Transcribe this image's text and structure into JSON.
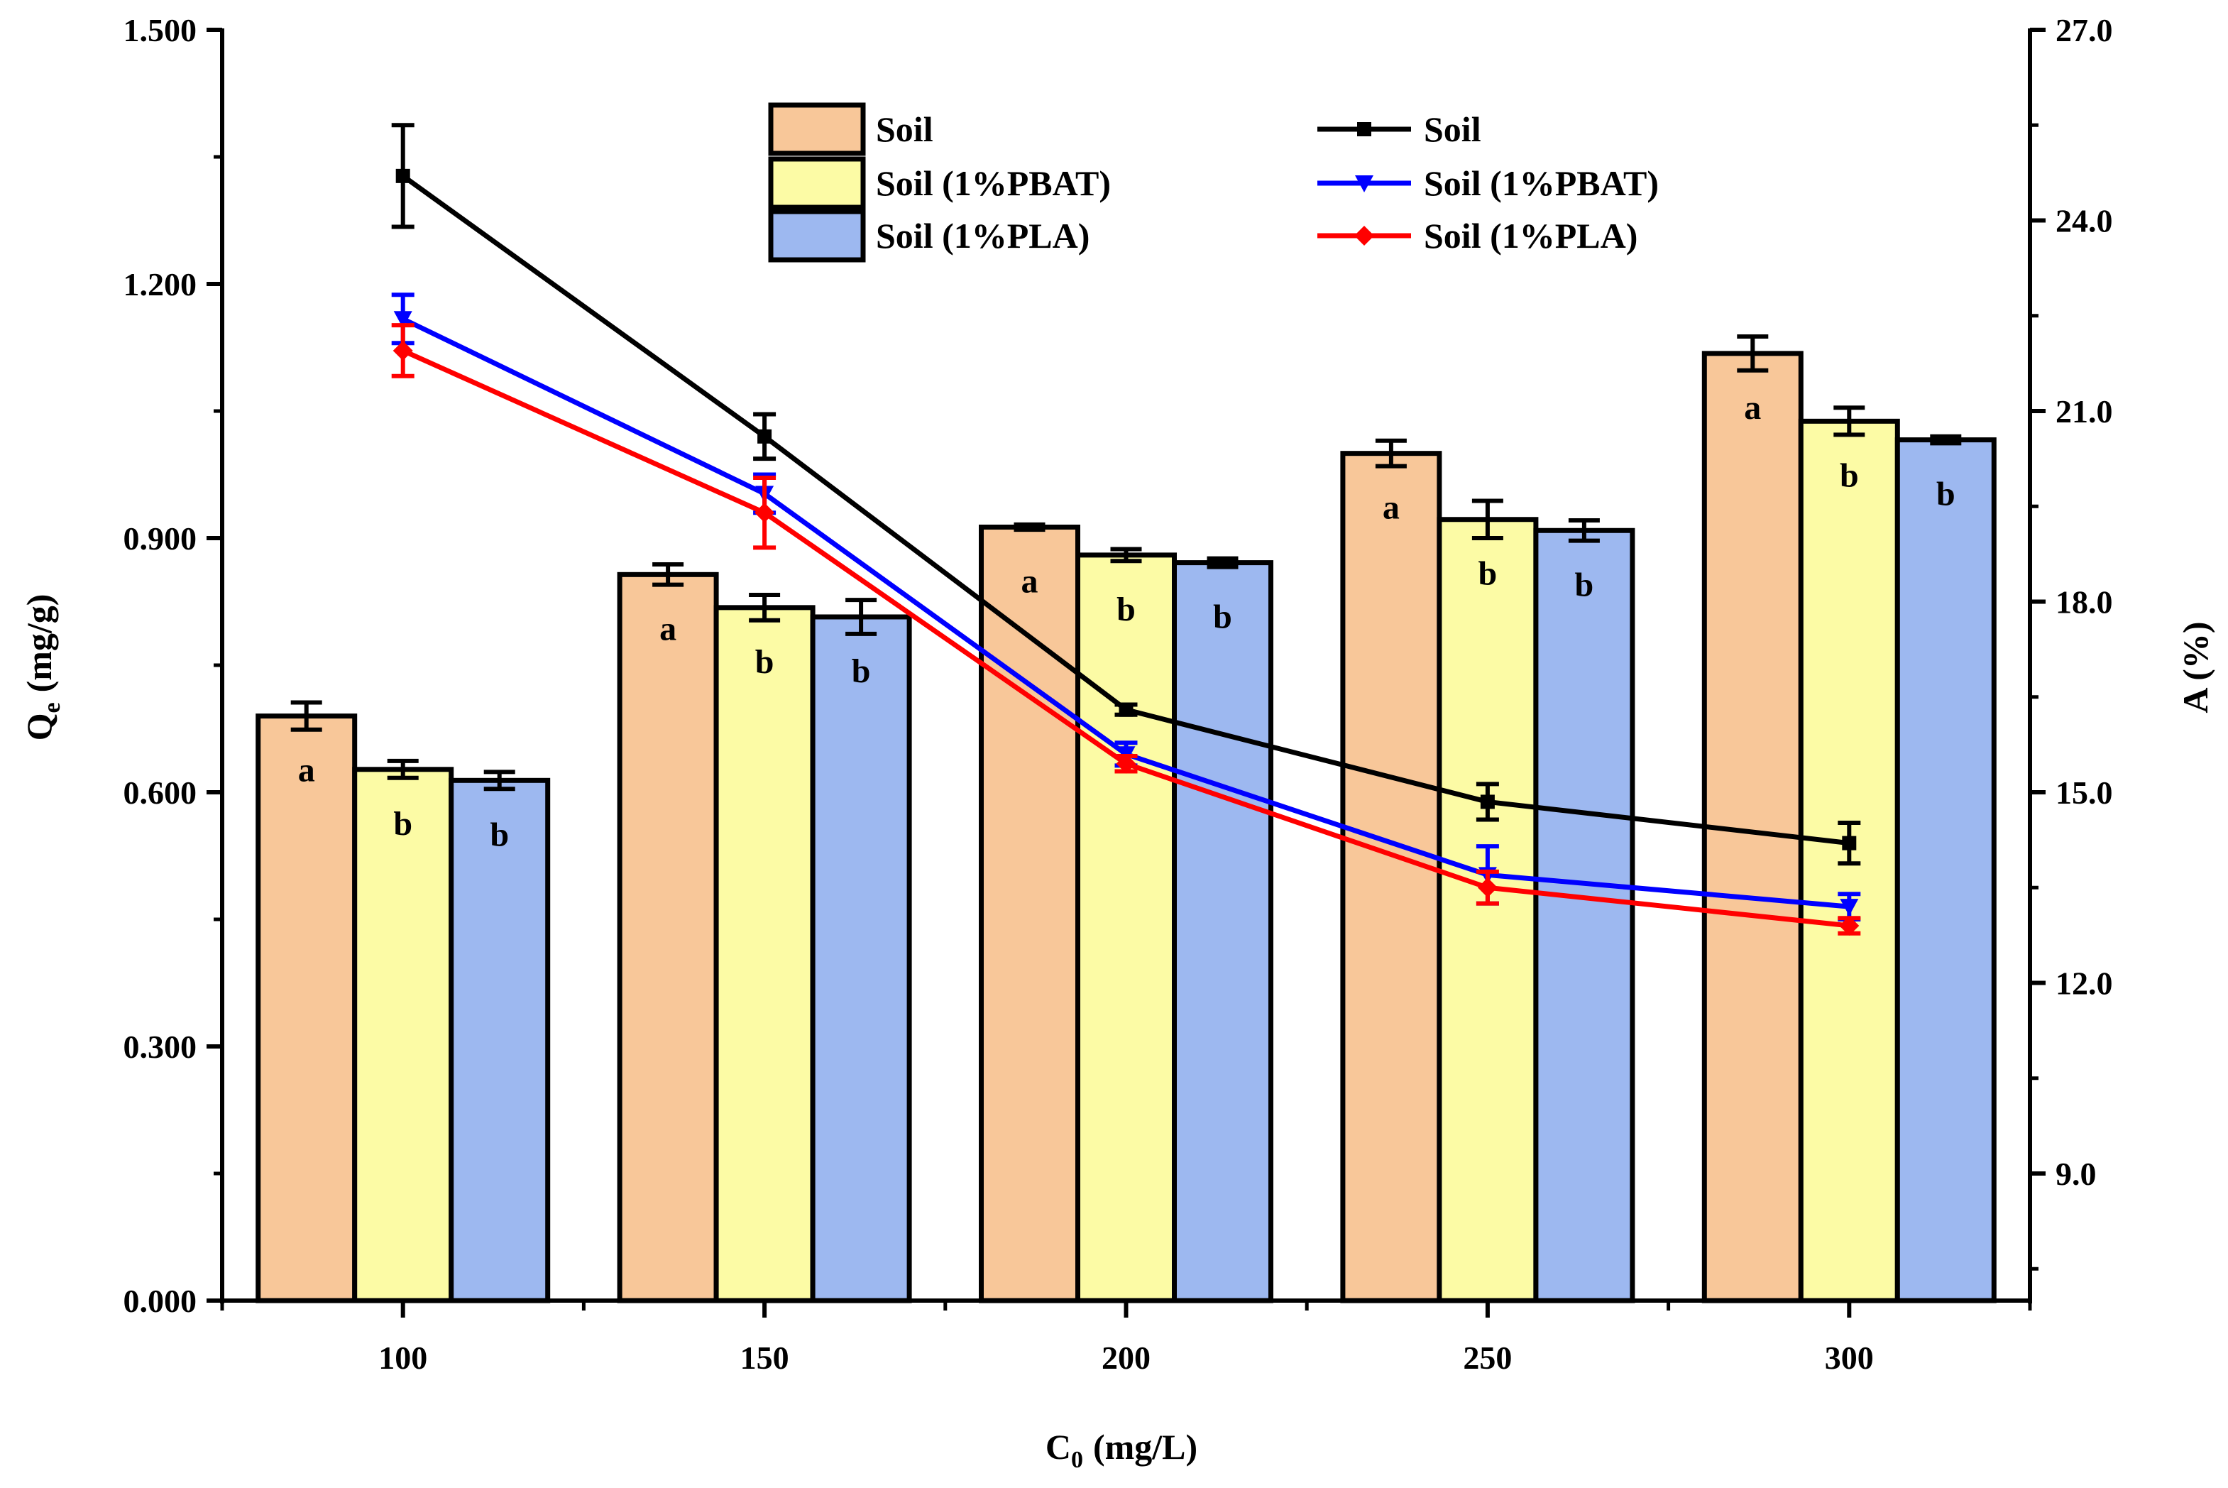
{
  "chart_data": {
    "type": "bar",
    "title": "",
    "xlabel": "C",
    "xlabel_sub": "0",
    "xlabel_unit": "(mg/L)",
    "ylabel": "Q",
    "ylabel_sub": "e",
    "ylabel_unit": "(mg/g)",
    "y2label": "A (%)",
    "categories": [
      "100",
      "150",
      "200",
      "250",
      "300"
    ],
    "ylim": [
      0,
      1.5
    ],
    "yticks": [
      "0.000",
      "0.300",
      "0.600",
      "0.900",
      "1.200",
      "1.500"
    ],
    "y2lim": [
      7,
      27
    ],
    "y2ticks": [
      "9.0",
      "12.0",
      "15.0",
      "18.0",
      "21.0",
      "24.0",
      "27.0"
    ],
    "bar_series": [
      {
        "name": "Soil",
        "color": "#F8C799",
        "values": [
          0.69,
          0.857,
          0.913,
          1.0,
          1.118
        ],
        "errors": [
          0.016,
          0.012,
          0.003,
          0.015,
          0.02
        ],
        "letters": [
          "a",
          "a",
          "a",
          "a",
          "a"
        ]
      },
      {
        "name": "Soil (1%PBAT)",
        "color": "#FCFBA5",
        "values": [
          0.627,
          0.818,
          0.88,
          0.922,
          1.038
        ],
        "errors": [
          0.01,
          0.015,
          0.007,
          0.022,
          0.016
        ],
        "letters": [
          "b",
          "b",
          "b",
          "b",
          "b"
        ]
      },
      {
        "name": "Soil (1%PLA)",
        "color": "#9DB8F0",
        "values": [
          0.614,
          0.807,
          0.871,
          0.909,
          1.016
        ],
        "errors": [
          0.01,
          0.02,
          0.005,
          0.012,
          0.004
        ],
        "letters": [
          "b",
          "b",
          "b",
          "b",
          "b"
        ]
      }
    ],
    "line_series": [
      {
        "name": "Soil",
        "color": "#000000",
        "marker": "square",
        "values": [
          24.7,
          20.6,
          16.3,
          14.85,
          14.2
        ],
        "errors": [
          0.8,
          0.35,
          0.08,
          0.28,
          0.32
        ]
      },
      {
        "name": "Soil (1%PBAT)",
        "color": "#0000FF",
        "marker": "triangle-down",
        "values": [
          22.45,
          19.7,
          15.6,
          13.7,
          13.2
        ],
        "errors": [
          0.38,
          0.3,
          0.18,
          0.45,
          0.2
        ]
      },
      {
        "name": "Soil (1%PLA)",
        "color": "#FF0000",
        "marker": "diamond",
        "values": [
          21.95,
          19.4,
          15.45,
          13.5,
          12.9
        ],
        "errors": [
          0.4,
          0.55,
          0.12,
          0.25,
          0.12
        ]
      }
    ],
    "legend_position": "top-center"
  }
}
